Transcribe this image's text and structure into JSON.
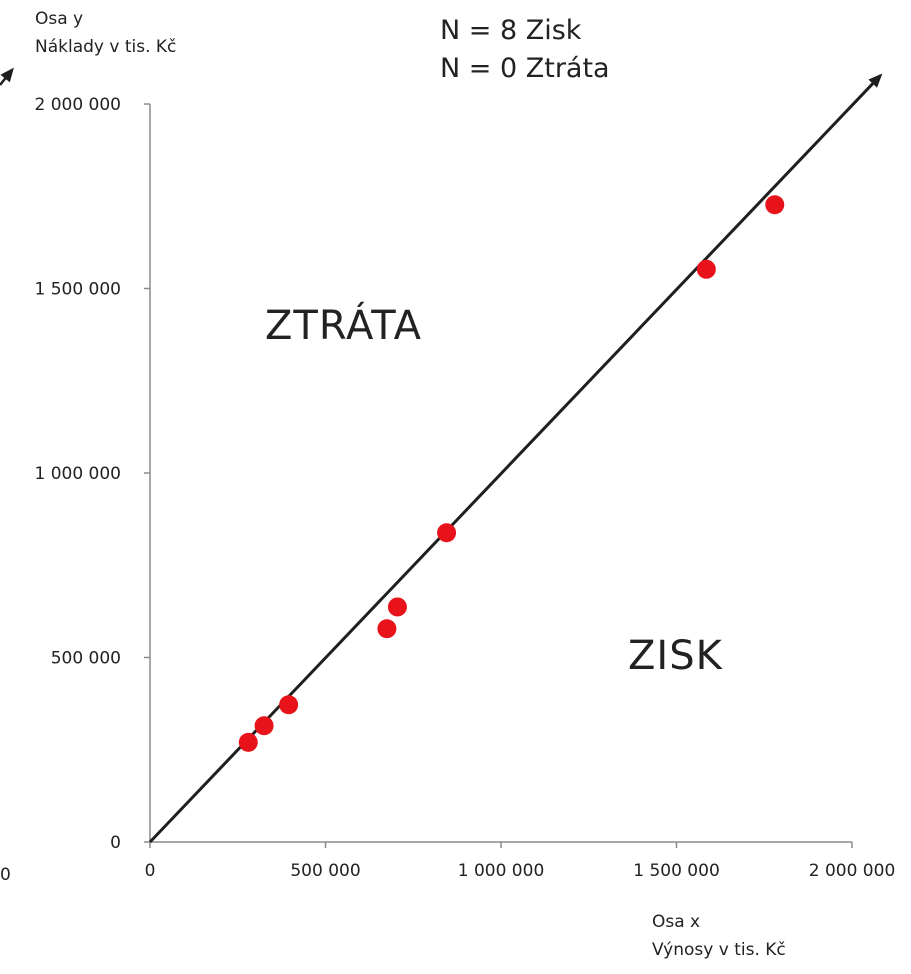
{
  "chart_data": {
    "type": "scatter",
    "y_axis_caption": [
      "Osa y",
      "Náklady v tis. Kč"
    ],
    "x_axis_caption": [
      "Osa x",
      "Výnosy v tis. Kč"
    ],
    "header_lines": [
      "N = 8 Zisk",
      "N = 0 Ztráta"
    ],
    "region_labels": {
      "upper_left": "ZTRÁTA",
      "lower_right": "ZISK"
    },
    "xlim": [
      0,
      2000000
    ],
    "ylim": [
      0,
      2000000
    ],
    "x_ticks": [
      0,
      500000,
      1000000,
      1500000,
      2000000
    ],
    "y_ticks": [
      0,
      500000,
      1000000,
      1500000,
      2000000
    ],
    "x_tick_labels": [
      "0",
      "500 000",
      "1 000 000",
      "1 500 000",
      "2 000 000"
    ],
    "y_tick_labels": [
      "0",
      "500 000",
      "1 000 000",
      "1 500 000",
      "2 000 000"
    ],
    "stray_label": "0",
    "reference_line": {
      "from": [
        0,
        0
      ],
      "to": [
        2000000,
        2000000
      ],
      "color": "#1f1f1f",
      "arrow": true
    },
    "point_color": "#e8121b",
    "points": [
      {
        "x": 280000,
        "y": 270000
      },
      {
        "x": 325000,
        "y": 315000
      },
      {
        "x": 395000,
        "y": 372000
      },
      {
        "x": 675000,
        "y": 578000
      },
      {
        "x": 705000,
        "y": 637000
      },
      {
        "x": 845000,
        "y": 838000
      },
      {
        "x": 1585000,
        "y": 1552000
      },
      {
        "x": 1780000,
        "y": 1727000
      }
    ],
    "grid": false
  }
}
